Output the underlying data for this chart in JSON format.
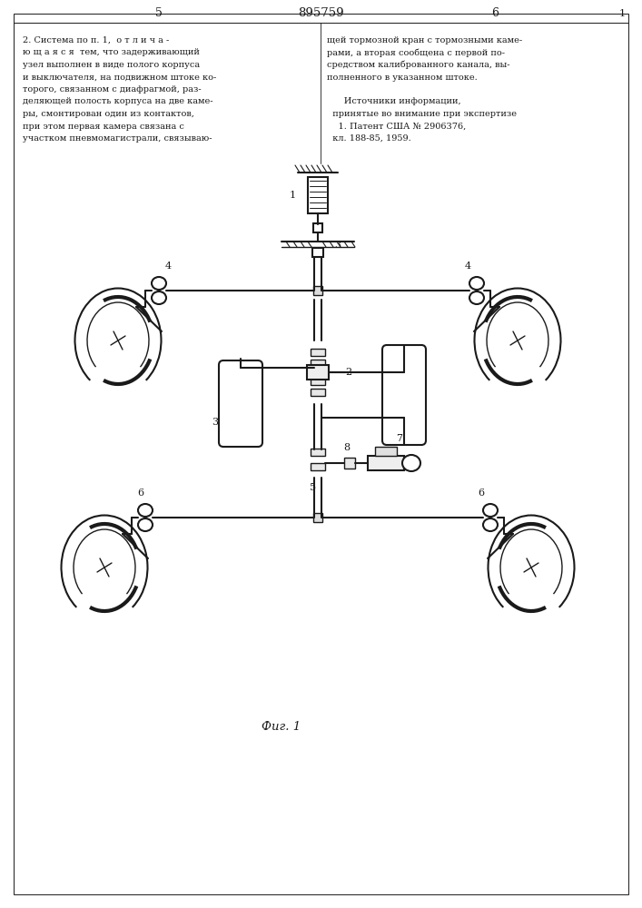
{
  "page_number_left": "5",
  "patent_number": "895759",
  "page_number_right": "6",
  "fig_label": "Фuг. 1",
  "bg_color": "#ffffff",
  "line_color": "#1a1a1a"
}
